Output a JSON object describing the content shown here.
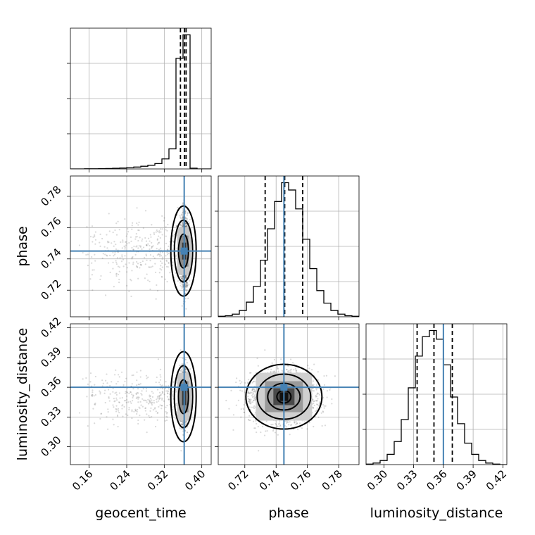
{
  "chart_data": {
    "type": "corner",
    "parameters": [
      "geocent_time",
      "phase",
      "luminosity_distance"
    ],
    "axes_labels": {
      "geocent_time": "geocent_time",
      "phase": "phase",
      "luminosity_distance": "luminosity_distance"
    },
    "ranges": {
      "geocent_time": [
        0.12,
        0.42
      ],
      "phase": [
        0.703,
        0.793
      ],
      "luminosity_distance": [
        0.282,
        0.424
      ]
    },
    "ticks": {
      "geocent_time": [
        0.16,
        0.24,
        0.32,
        0.4
      ],
      "phase": [
        0.72,
        0.74,
        0.76,
        0.78
      ],
      "luminosity_distance": [
        0.3,
        0.33,
        0.36,
        0.39,
        0.42
      ]
    },
    "tick_labels": {
      "geocent_time": [
        "0.16",
        "0.24",
        "0.32",
        "0.40"
      ],
      "phase": [
        "0.72",
        "0.74",
        "0.76",
        "0.78"
      ],
      "luminosity_distance": [
        "0.30",
        "0.33",
        "0.36",
        "0.39",
        "0.42"
      ]
    },
    "truths": {
      "geocent_time": 0.3625,
      "phase": 0.745,
      "luminosity_distance": 0.36
    },
    "truth_color": "#4682b4",
    "quantiles": {
      "geocent_time": [
        0.3545,
        0.363,
        0.3665
      ],
      "phase": [
        0.733,
        0.7455,
        0.757
      ],
      "luminosity_distance": [
        0.3335,
        0.3505,
        0.369
      ]
    },
    "histograms": {
      "geocent_time": {
        "edges": [
          0.12,
          0.135,
          0.15,
          0.165,
          0.18,
          0.195,
          0.21,
          0.225,
          0.24,
          0.255,
          0.27,
          0.285,
          0.3,
          0.315,
          0.33,
          0.345,
          0.36,
          0.375,
          0.39,
          0.405,
          0.42
        ],
        "counts": [
          0,
          0,
          1,
          1,
          2,
          3,
          5,
          7,
          10,
          14,
          20,
          28,
          40,
          75,
          150,
          825,
          1000,
          6,
          0,
          0
        ]
      },
      "phase": {
        "edges": [
          0.703,
          0.7075,
          0.712,
          0.7165,
          0.721,
          0.7255,
          0.73,
          0.7345,
          0.739,
          0.7435,
          0.748,
          0.7525,
          0.757,
          0.7615,
          0.766,
          0.7705,
          0.775,
          0.7795,
          0.784,
          0.7885,
          0.793
        ],
        "counts": [
          1,
          2,
          5,
          12,
          28,
          58,
          108,
          168,
          220,
          256,
          242,
          206,
          148,
          92,
          50,
          26,
          12,
          5,
          2,
          1
        ]
      },
      "luminosity_distance": {
        "edges": [
          0.282,
          0.2891,
          0.2962,
          0.3033,
          0.3104,
          0.3175,
          0.3246,
          0.3317,
          0.3388,
          0.3459,
          0.353,
          0.3601,
          0.3672,
          0.3743,
          0.3814,
          0.3885,
          0.3956,
          0.4027,
          0.4098,
          0.4169,
          0.424
        ],
        "counts": [
          1,
          3,
          8,
          20,
          45,
          88,
          150,
          212,
          250,
          262,
          245,
          195,
          132,
          80,
          42,
          20,
          8,
          3,
          1,
          0
        ]
      }
    },
    "scatter_density": {
      "geocent_time": {
        "center": 0.3625,
        "spread_main": 0.004,
        "tail_start": 0.13
      },
      "phase": {
        "center": 0.745,
        "sigma": 0.0105
      },
      "luminosity_distance": {
        "center": 0.3505,
        "sigma": 0.013
      }
    },
    "grid": true
  }
}
